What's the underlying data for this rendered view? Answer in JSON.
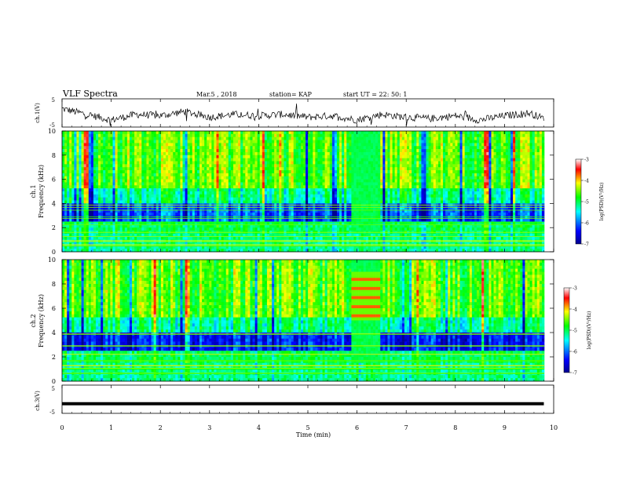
{
  "header": {
    "title": "VLF Spectra",
    "date": "Mar.5  , 2018",
    "station": "station= KAP",
    "start": "start  UT  =    22: 50: 1"
  },
  "colors": {
    "trace": "#000000",
    "colormap": [
      "#00008f",
      "#0000ff",
      "#00ffff",
      "#00ff00",
      "#ffff00",
      "#ff0000",
      "#ffffff"
    ]
  },
  "chart_data": [
    {
      "type": "line",
      "name": "ch1-voltage",
      "ylabel": "ch.1(V)",
      "ylim": [
        -5,
        5
      ],
      "yticks": [
        "5",
        "-5"
      ],
      "xlim": [
        0,
        10
      ],
      "x": [
        0,
        0.5,
        1,
        1.5,
        2,
        2.5,
        3,
        3.5,
        4,
        4.5,
        5,
        5.5,
        6,
        6.5,
        7,
        7.5,
        8,
        8.5,
        9,
        9.5,
        9.8
      ],
      "values": [
        1.5,
        -0.5,
        -2.5,
        -0.5,
        -1,
        0.5,
        -1.5,
        -0.5,
        -1,
        -0.5,
        -1.5,
        -1,
        -2.5,
        -0.5,
        -1.5,
        -2,
        -1,
        -2.5,
        -1,
        0,
        -2
      ]
    },
    {
      "type": "heatmap",
      "name": "ch1-spectrogram",
      "ylabel": "ch.1\nFrequency (kHz)",
      "ylim": [
        0,
        10
      ],
      "yticks": [
        "0",
        "2",
        "4",
        "6",
        "8",
        "10"
      ],
      "xlim": [
        0,
        10
      ],
      "colorbar": {
        "label": "log(PSD)(V²/Hz)",
        "range": [
          -7,
          -3
        ],
        "ticks": [
          "-3",
          "-4",
          "-5",
          "-6",
          "-7"
        ]
      }
    },
    {
      "type": "heatmap",
      "name": "ch2-spectrogram",
      "ylabel": "ch.2\nFrequency (kHz)",
      "ylim": [
        0,
        10
      ],
      "yticks": [
        "0",
        "2",
        "4",
        "6",
        "8",
        "10"
      ],
      "xlim": [
        0,
        10
      ],
      "colorbar": {
        "label": "log(PSD)(V²/Hz)",
        "range": [
          -7,
          -3
        ],
        "ticks": [
          "-3",
          "-4",
          "-5",
          "-6",
          "-7"
        ]
      }
    },
    {
      "type": "line",
      "name": "ch3-voltage",
      "ylabel": "ch.3(V)",
      "ylim": [
        -5,
        5
      ],
      "yticks": [
        "5",
        "-5"
      ],
      "xlim": [
        0,
        10
      ],
      "x": [
        0,
        9.8
      ],
      "values": [
        -1.6,
        -1.6
      ]
    }
  ],
  "xaxis": {
    "label": "Time (min)",
    "ticks": [
      "0",
      "1",
      "2",
      "3",
      "4",
      "5",
      "6",
      "7",
      "8",
      "9",
      "10"
    ]
  }
}
